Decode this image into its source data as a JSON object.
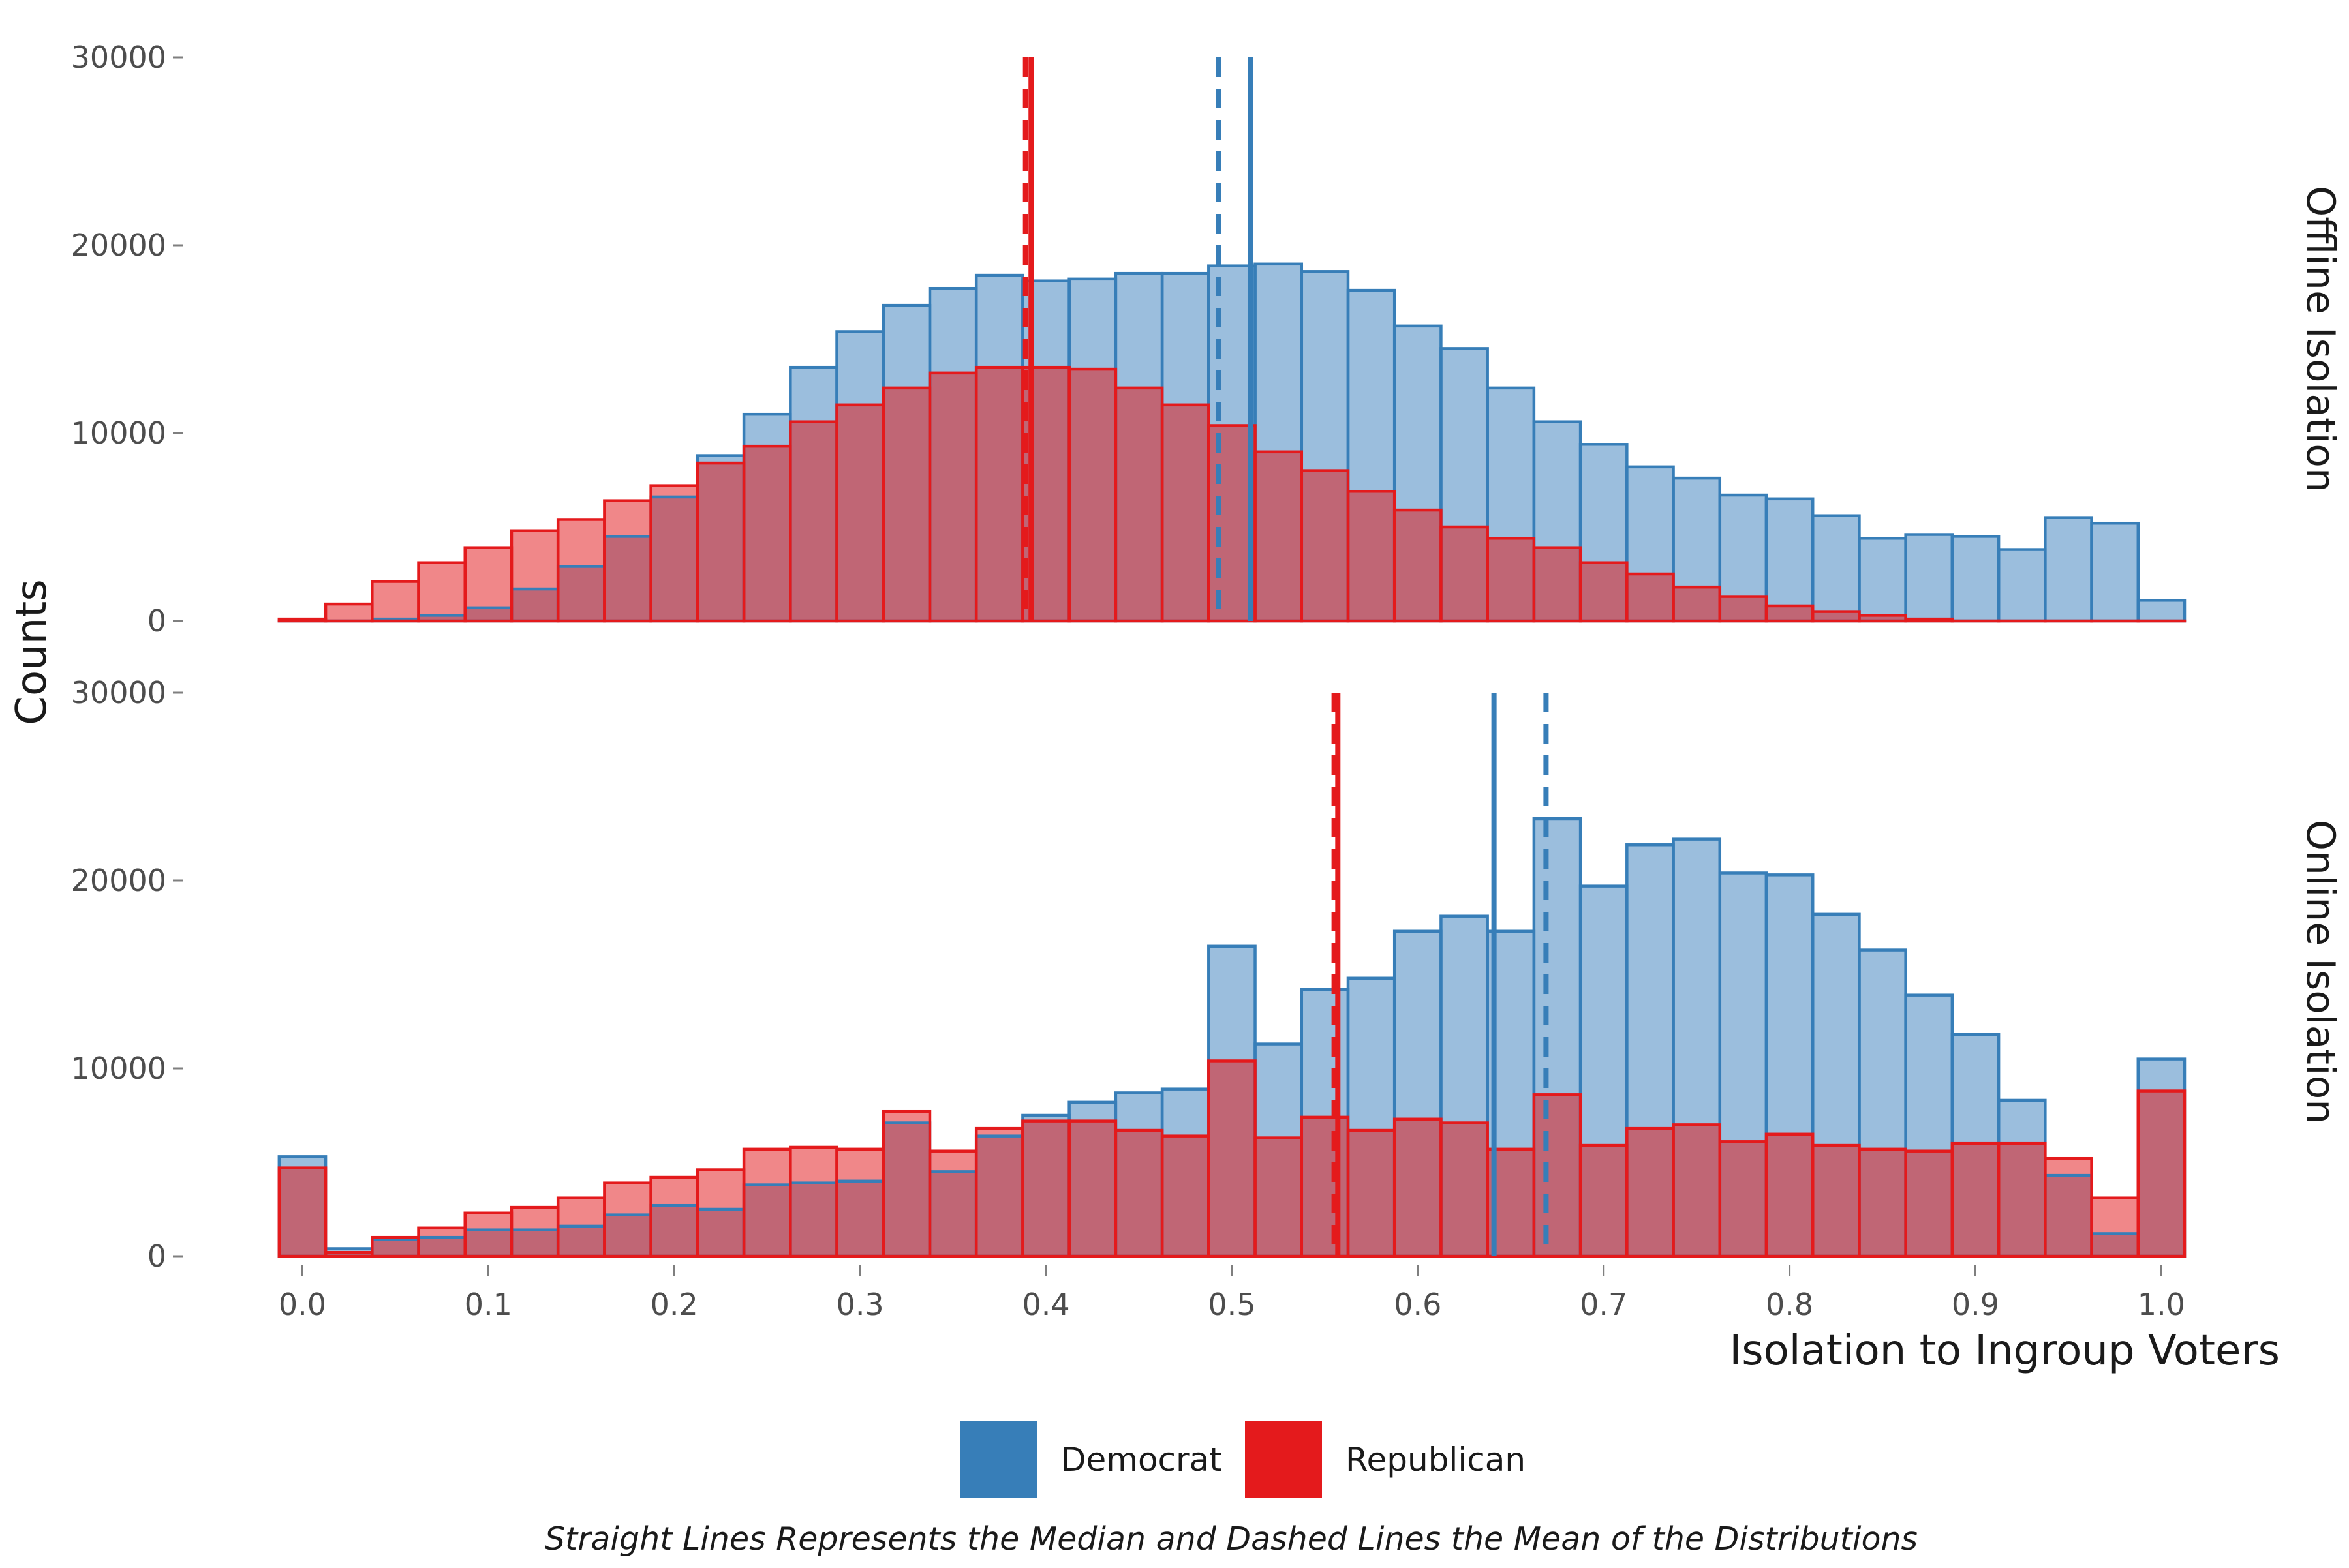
{
  "chart_data": {
    "type": "bar",
    "subtype": "overlaid-histogram-faceted",
    "xlabel": "Isolation to Ingroup Voters",
    "ylabel": "Counts",
    "caption": "Straight Lines Represents the Median and Dashed Lines the Mean of the Distributions",
    "x_ticks": [
      "0.0",
      "0.1",
      "0.2",
      "0.3",
      "0.4",
      "0.5",
      "0.6",
      "0.7",
      "0.8",
      "0.9",
      "1.0"
    ],
    "y_ticks": [
      "0",
      "10000",
      "20000",
      "30000"
    ],
    "xlim": [
      -0.0135,
      1.0125
    ],
    "ylim": [
      0,
      30000
    ],
    "bin_width": 0.025,
    "bin_centers": [
      0.0,
      0.025,
      0.05,
      0.075,
      0.1,
      0.125,
      0.15,
      0.175,
      0.2,
      0.225,
      0.25,
      0.275,
      0.3,
      0.325,
      0.35,
      0.375,
      0.4,
      0.425,
      0.45,
      0.475,
      0.5,
      0.525,
      0.55,
      0.575,
      0.6,
      0.625,
      0.65,
      0.675,
      0.7,
      0.725,
      0.75,
      0.775,
      0.8,
      0.825,
      0.85,
      0.875,
      0.9,
      0.925,
      0.95,
      0.975,
      1.0
    ],
    "legend": {
      "position": "bottom",
      "entries": [
        {
          "name": "Democrat",
          "color": "#377eb8"
        },
        {
          "name": "Republican",
          "color": "#e41a1c"
        }
      ]
    },
    "colors": {
      "democrat_fill": "#9bbedd",
      "democrat_line": "#377eb8",
      "republican_fill": "#f08789",
      "republican_line": "#e41a1c",
      "overlap_fill": "#c06675"
    },
    "facets": [
      {
        "label": "Offline Isolation",
        "series": [
          {
            "name": "Democrat",
            "values": [
              0,
              0,
              100,
              300,
              700,
              1700,
              2900,
              4500,
              6600,
              8800,
              11000,
              13500,
              15400,
              16800,
              17700,
              18400,
              18100,
              18200,
              18500,
              18500,
              18900,
              19000,
              18600,
              17600,
              15700,
              14500,
              12400,
              10600,
              9400,
              8200,
              7600,
              6700,
              6500,
              5600,
              4400,
              4600,
              4500,
              3800,
              5500,
              5200,
              1100
            ],
            "median": 0.51,
            "mean": 0.493
          },
          {
            "name": "Republican",
            "values": [
              100,
              900,
              2100,
              3100,
              3900,
              4800,
              5400,
              6400,
              7200,
              8400,
              9300,
              10600,
              11500,
              12400,
              13200,
              13500,
              13500,
              13400,
              12400,
              11500,
              10400,
              9000,
              8000,
              6900,
              5900,
              5000,
              4400,
              3900,
              3100,
              2500,
              1800,
              1300,
              800,
              500,
              300,
              100,
              0,
              0,
              0,
              0,
              0
            ],
            "median": 0.392,
            "mean": 0.389
          }
        ]
      },
      {
        "label": "Online Isolation",
        "series": [
          {
            "name": "Democrat",
            "values": [
              5300,
              400,
              900,
              1000,
              1400,
              1400,
              1600,
              2200,
              2700,
              2500,
              3800,
              3900,
              4000,
              7100,
              4500,
              6400,
              7500,
              8200,
              8700,
              8900,
              16500,
              11300,
              14200,
              14800,
              17300,
              18100,
              17300,
              23300,
              19700,
              21900,
              22200,
              20400,
              20300,
              18200,
              16300,
              13900,
              11800,
              8300,
              4300,
              1200,
              10500
            ],
            "median": 0.641,
            "mean": 0.669
          },
          {
            "name": "Republican",
            "values": [
              4700,
              200,
              1000,
              1500,
              2300,
              2600,
              3100,
              3900,
              4200,
              4600,
              5700,
              5800,
              5700,
              7700,
              5600,
              6800,
              7200,
              7200,
              6700,
              6400,
              10400,
              6300,
              7400,
              6700,
              7300,
              7100,
              5700,
              8600,
              5900,
              6800,
              7000,
              6100,
              6500,
              5900,
              5700,
              5600,
              6000,
              6000,
              5200,
              3100,
              8800
            ],
            "median": 0.557,
            "mean": 0.555
          }
        ]
      }
    ]
  }
}
